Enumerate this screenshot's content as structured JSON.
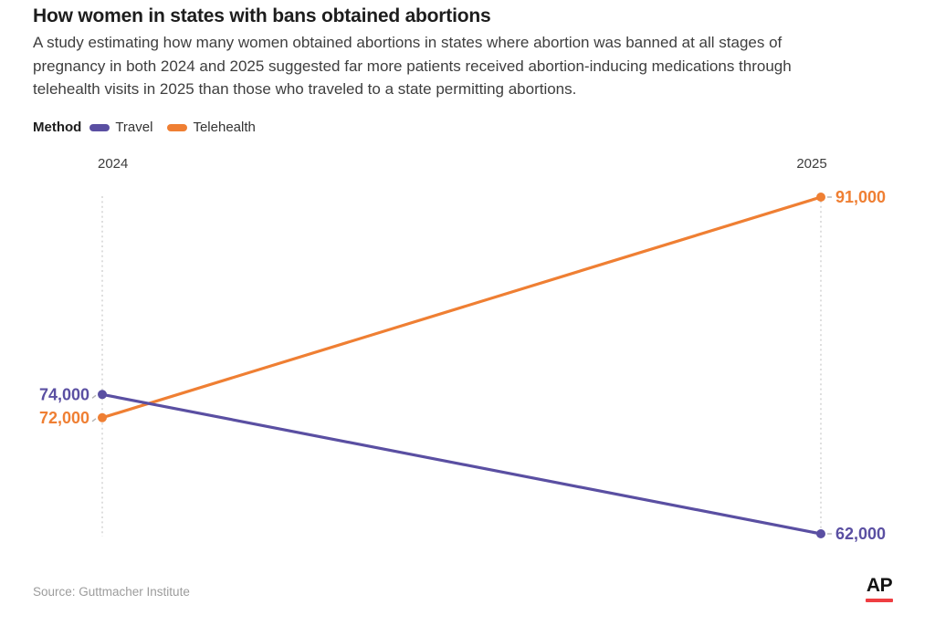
{
  "header": {
    "title": "How women in states with bans obtained abortions",
    "subtitle": "A study estimating how many women obtained abortions in states where abortion was banned at all stages of\npregnancy in both 2024 and 2025 suggested far more patients received abortion-inducing medications through\ntelehealth visits in 2025 than those who traveled to a state permitting abortions."
  },
  "legend": {
    "label": "Method"
  },
  "chart_data": {
    "type": "line",
    "variant": "slope",
    "categories": [
      "2024",
      "2025"
    ],
    "series": [
      {
        "name": "Travel",
        "color": "#5a4fa2",
        "values": [
          74000,
          62000
        ]
      },
      {
        "name": "Telehealth",
        "color": "#ef7f33",
        "values": [
          72000,
          91000
        ]
      }
    ],
    "ylim": [
      62000,
      91000
    ],
    "grid": "dotted vertical guide at each category column",
    "legend_position": "top-left",
    "value_labels": [
      "74,000",
      "62,000",
      "72,000",
      "91,000"
    ]
  },
  "footer": {
    "source": "Source: Guttmacher Institute"
  },
  "branding": {
    "logo_text": "AP",
    "logo_bar_color": "#ef3e42"
  },
  "colors": {
    "travel": "#5a4fa2",
    "telehealth": "#ef7f33",
    "guide_line": "#c9c9c9",
    "title_text": "#1d1d1d",
    "body_text": "#3e3e3e",
    "source_text": "#9c9c9c"
  }
}
